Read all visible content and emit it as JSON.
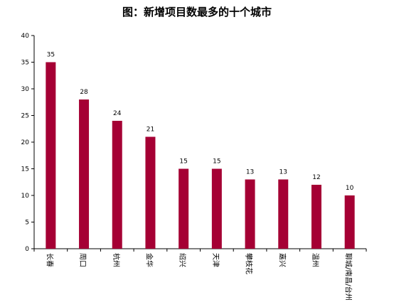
{
  "chart_data": {
    "type": "bar",
    "title": "图：新增项目数最多的十个城市",
    "categories": [
      "长春",
      "周口",
      "杭州",
      "金华",
      "绍兴",
      "天津",
      "攀枝花",
      "嘉兴",
      "温州",
      "聊城/南昌/台州"
    ],
    "values": [
      35,
      28,
      24,
      21,
      15,
      15,
      13,
      13,
      12,
      10
    ],
    "xlabel": "",
    "ylabel": "",
    "ylim": [
      0,
      40
    ],
    "yticks": [
      0,
      5,
      10,
      15,
      20,
      25,
      30,
      35,
      40
    ],
    "data_labels": true,
    "grid": false,
    "legend": "none",
    "bar_color": "#a50034"
  }
}
